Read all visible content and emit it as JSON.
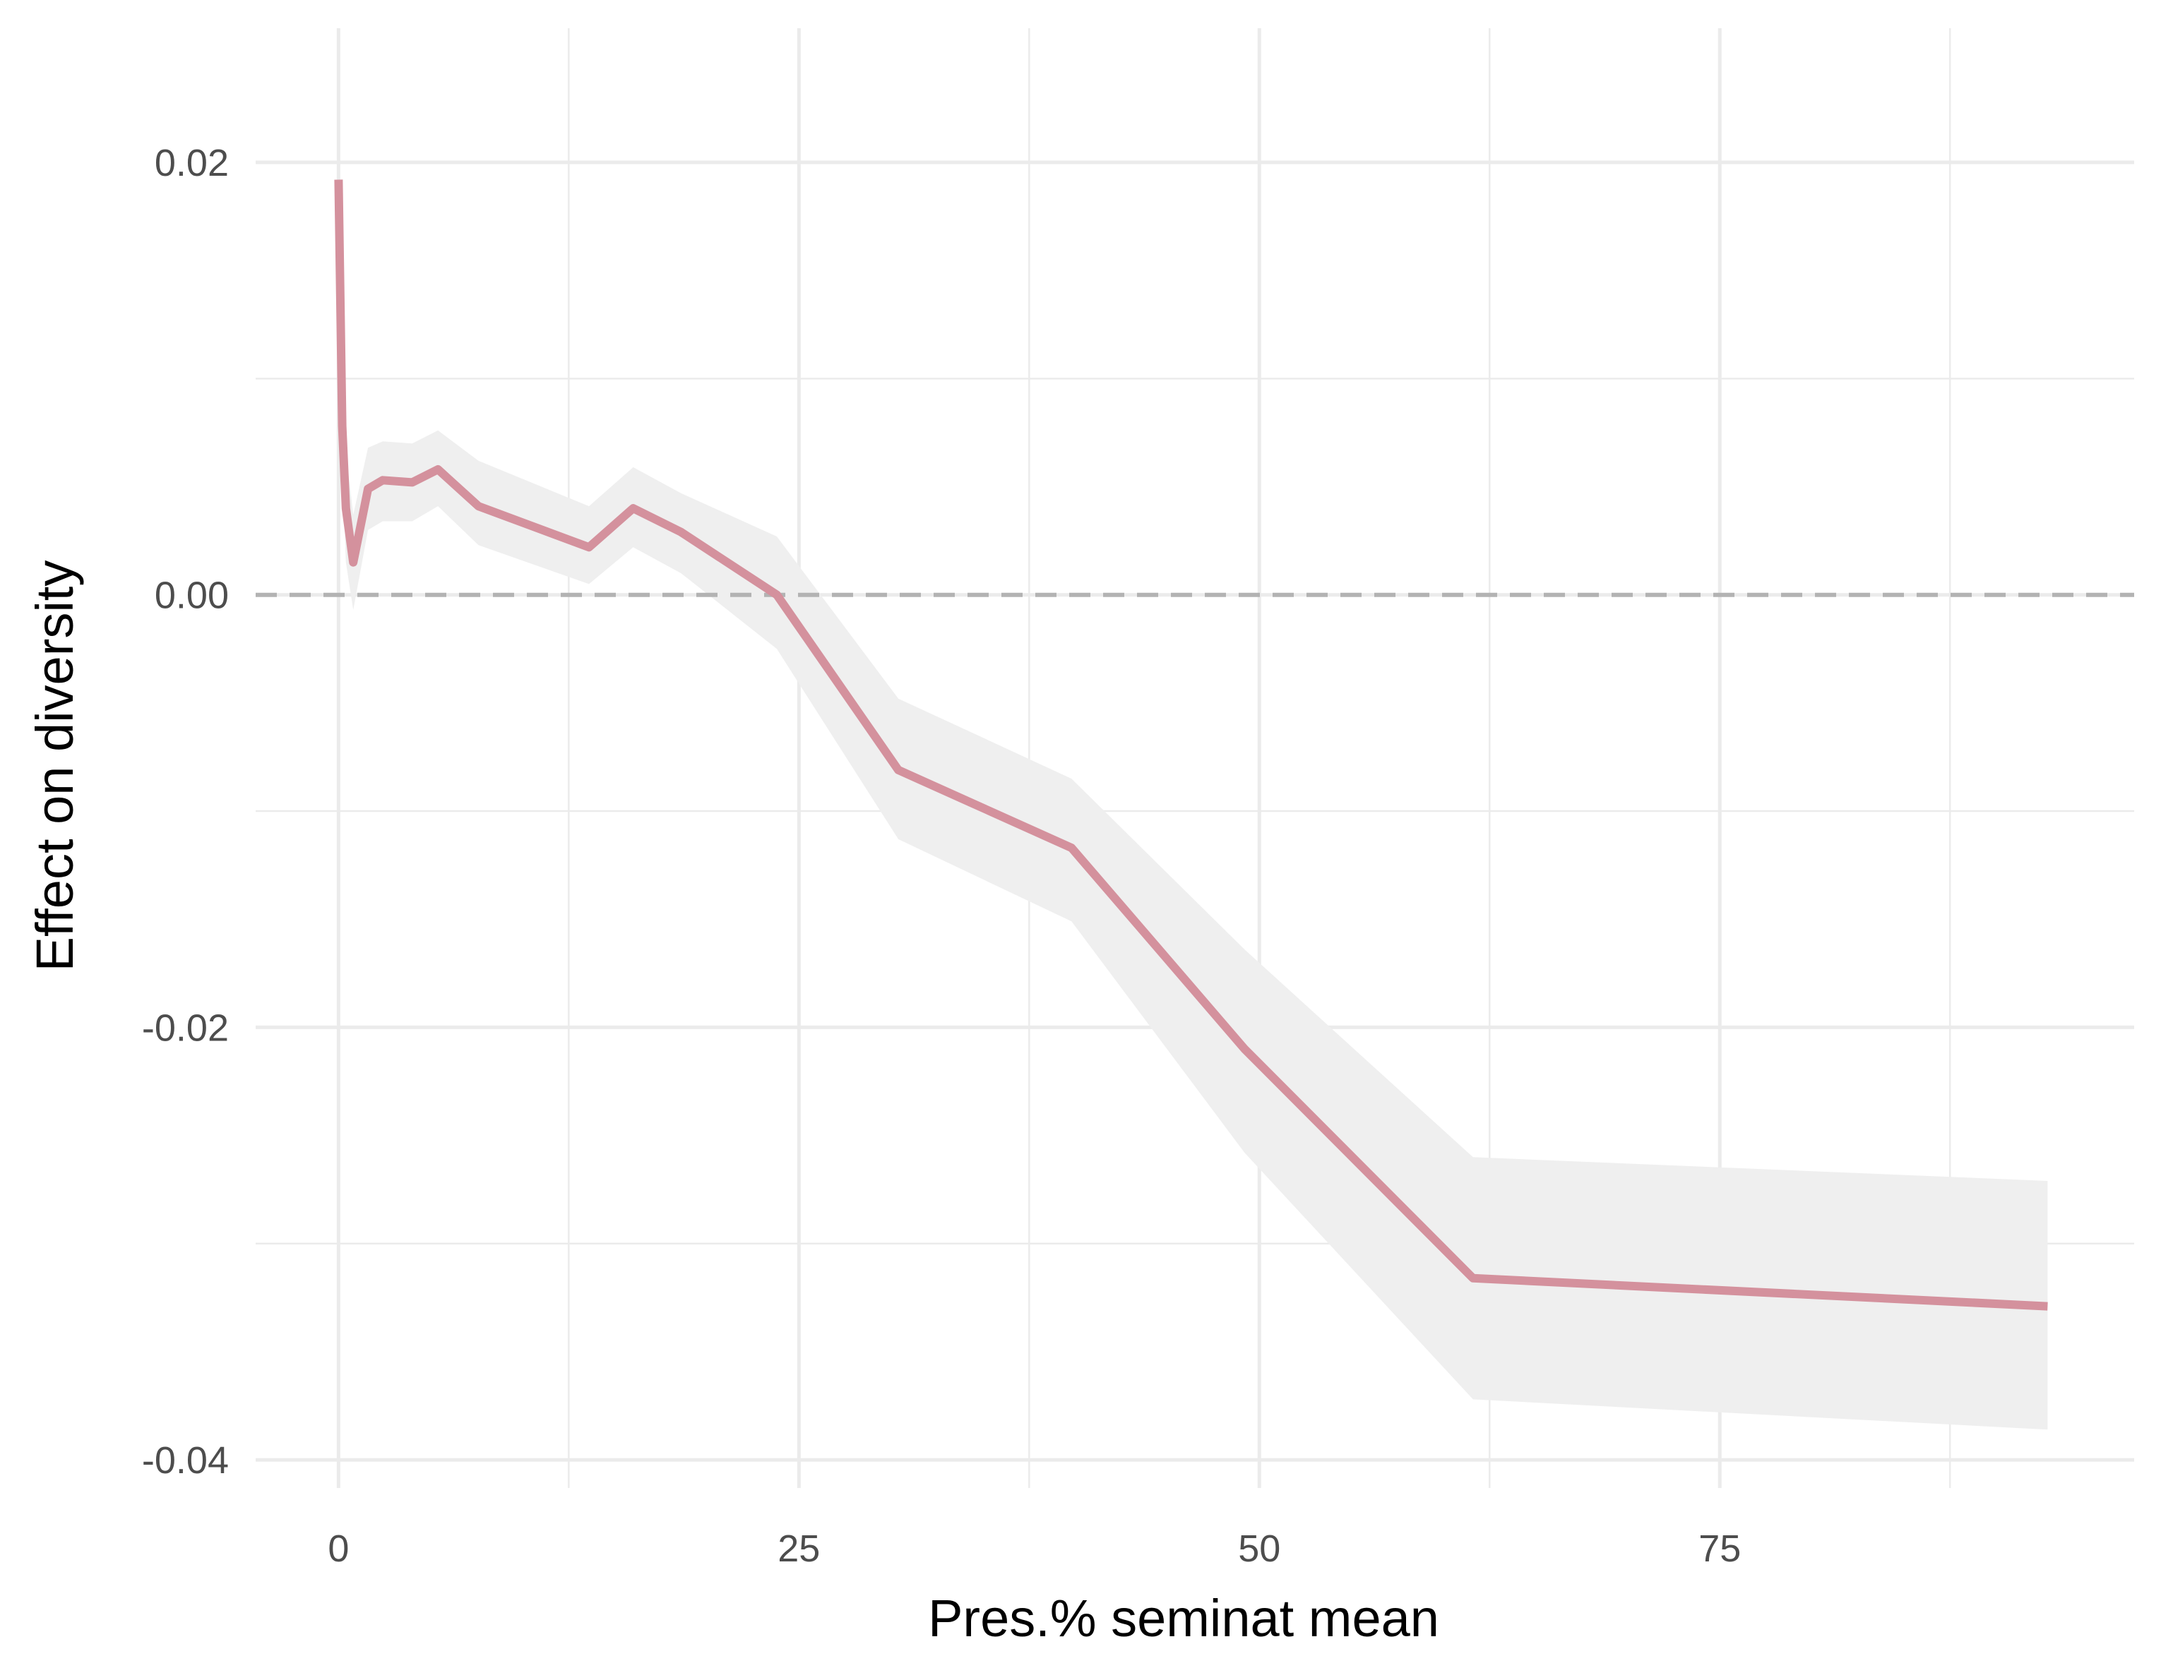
{
  "chart_data": {
    "type": "line",
    "title": "",
    "xlabel": "Pres.% seminat mean",
    "ylabel": "Effect on diversity",
    "xlim": [
      -4.5,
      97.5
    ],
    "ylim": [
      -0.0413,
      0.0262
    ],
    "x_ticks": [
      0,
      25,
      50,
      75
    ],
    "x_tick_labels": [
      "0",
      "25",
      "50",
      "75"
    ],
    "x_minor_ticks": [
      12.5,
      37.5,
      62.5,
      87.5
    ],
    "y_ticks": [
      0.02,
      0.0,
      -0.02,
      -0.04
    ],
    "y_tick_labels": [
      "0.02",
      "0.00",
      "-0.02",
      "-0.04"
    ],
    "y_minor_ticks": [
      0.01,
      -0.01,
      -0.03
    ],
    "grid": true,
    "reference_line": {
      "y": 0,
      "style": "dashed",
      "color": "#b3b3b3"
    },
    "series": [
      {
        "color": "#d4919d",
        "ribbon_color": "#efefef",
        "x": [
          0.0,
          0.2,
          0.4,
          0.8,
          1.6,
          2.4,
          4.0,
          5.4,
          7.6,
          13.6,
          16.0,
          18.6,
          23.8,
          30.4,
          39.8,
          49.2,
          61.6,
          92.8
        ],
        "y": [
          0.0192,
          0.0078,
          0.004,
          0.0015,
          0.0049,
          0.0053,
          0.0052,
          0.0058,
          0.0041,
          0.0022,
          0.004,
          0.0029,
          0.0,
          -0.0081,
          -0.0117,
          -0.021,
          -0.0316,
          -0.0329
        ],
        "lower": [
          0.0192,
          0.0062,
          0.0015,
          -0.0007,
          0.003,
          0.0034,
          0.0034,
          0.0041,
          0.0023,
          0.0005,
          0.0022,
          0.001,
          -0.0025,
          -0.0113,
          -0.0151,
          -0.0258,
          -0.0372,
          -0.0386
        ],
        "upper": [
          0.0192,
          0.0094,
          0.0066,
          0.0037,
          0.0068,
          0.0071,
          0.007,
          0.0076,
          0.0062,
          0.0041,
          0.0059,
          0.0047,
          0.0027,
          -0.0048,
          -0.0085,
          -0.0164,
          -0.026,
          -0.0271
        ]
      }
    ]
  }
}
